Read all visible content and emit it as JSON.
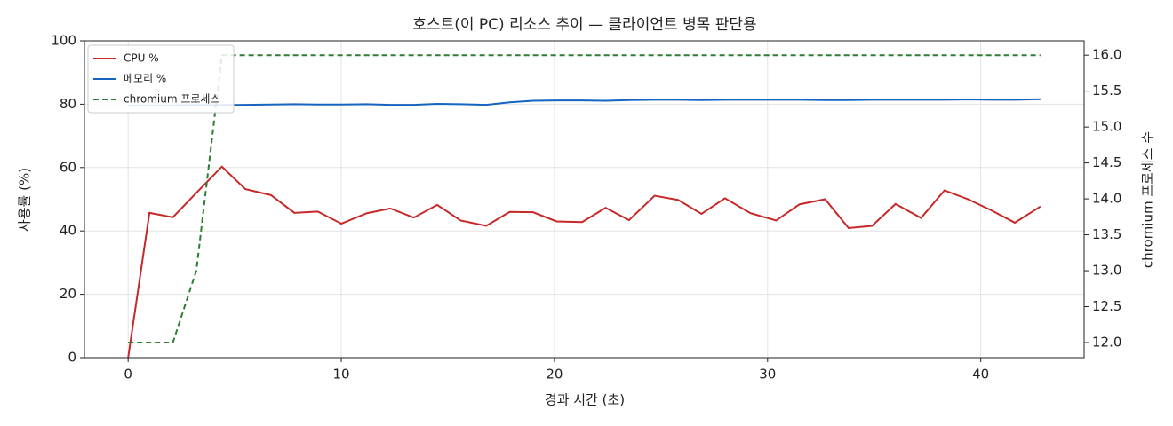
{
  "chart_data": {
    "type": "line",
    "title": "호스트(이 PC) 리소스 추이 — 클라이언트 병목 판단용",
    "x_label": "경과 시간 (초)",
    "y_label": "사용률 (%)",
    "y2_label": "chromium 프로세스 수",
    "x": [
      0,
      1.0,
      2.1,
      3.2,
      4.4,
      5.5,
      6.7,
      7.8,
      8.9,
      10.0,
      11.2,
      12.3,
      13.4,
      14.5,
      15.6,
      16.8,
      17.9,
      19.0,
      20.1,
      21.3,
      22.4,
      23.5,
      24.7,
      25.8,
      26.9,
      28.0,
      29.2,
      30.4,
      31.5,
      32.7,
      33.8,
      34.9,
      36.0,
      37.2,
      38.3,
      39.4,
      40.5,
      41.6,
      42.8
    ],
    "series": [
      {
        "name": "CPU %",
        "color": "#c62828",
        "style": "solid",
        "values": [
          0,
          45.7,
          44.3,
          52,
          60.3,
          53.2,
          51.3,
          45.7,
          46.1,
          42.3,
          45.6,
          47.1,
          44.2,
          48.2,
          43.3,
          41.6,
          46,
          45.9,
          43,
          42.8,
          47.3,
          43.4,
          51.1,
          49.8,
          45.4,
          50.3,
          45.6,
          43.3,
          48.4,
          50,
          40.9,
          41.6,
          48.5,
          44.1,
          52.8,
          50,
          46.5,
          42.6,
          47.7
        ]
      },
      {
        "name": "메모리 %",
        "color": "#1565c0",
        "style": "solid",
        "values": [
          79.5,
          79.6,
          79.6,
          79.7,
          79.7,
          79.8,
          79.9,
          80,
          79.9,
          79.9,
          80,
          79.8,
          79.8,
          80.1,
          80,
          79.8,
          80.6,
          81.1,
          81.2,
          81.2,
          81.1,
          81.3,
          81.4,
          81.4,
          81.3,
          81.4,
          81.4,
          81.4,
          81.4,
          81.3,
          81.3,
          81.4,
          81.4,
          81.4,
          81.4,
          81.5,
          81.4,
          81.4,
          81.6
        ]
      },
      {
        "name": "chromium 프로세스",
        "color": "#2e7d32",
        "style": "dashed",
        "axis": "y2",
        "values": [
          12,
          12,
          12,
          13,
          16,
          16,
          16,
          16,
          16,
          16,
          16,
          16,
          16,
          16,
          16,
          16,
          16,
          16,
          16,
          16,
          16,
          16,
          16,
          16,
          16,
          16,
          16,
          16,
          16,
          16,
          16,
          16,
          16,
          16,
          16,
          16,
          16,
          16,
          16
        ]
      }
    ],
    "xlim": [
      -2.05,
      44.85
    ],
    "xticks": [
      0,
      10,
      20,
      30,
      40
    ],
    "ylim": [
      0,
      100
    ],
    "yticks": [
      0,
      20,
      40,
      60,
      80,
      100
    ],
    "y2lim": [
      11.79,
      16.2
    ],
    "y2ticks": [
      {
        "value": 12,
        "label": "12.0"
      },
      {
        "value": 12.5,
        "label": "12.5"
      },
      {
        "value": 13,
        "label": "13.0"
      },
      {
        "value": 13.5,
        "label": "13.5"
      },
      {
        "value": 14,
        "label": "14.0"
      },
      {
        "value": 14.5,
        "label": "14.5"
      },
      {
        "value": 15,
        "label": "15.0"
      },
      {
        "value": 15.5,
        "label": "15.5"
      },
      {
        "value": 16,
        "label": "16.0"
      }
    ],
    "grid": true,
    "legend": "upper-left"
  }
}
